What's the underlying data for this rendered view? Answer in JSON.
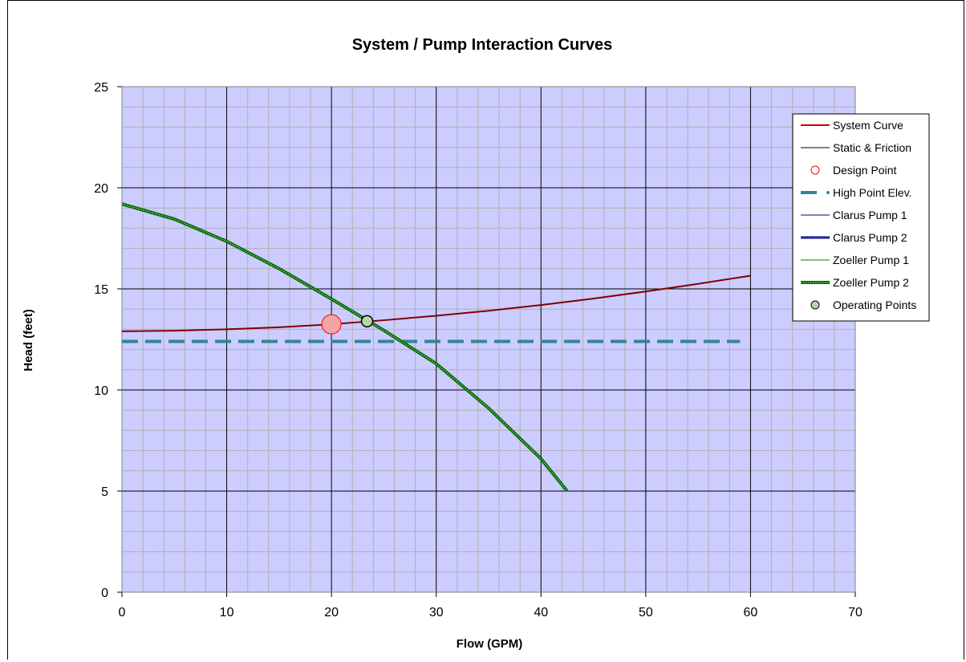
{
  "chart_data": {
    "type": "line",
    "title": "System / Pump Interaction Curves",
    "xlabel": "Flow (GPM)",
    "ylabel": "Head (feet)",
    "xlim": [
      0,
      70
    ],
    "ylim": [
      0,
      25
    ],
    "x_ticks": [
      "0",
      "10",
      "20",
      "30",
      "40",
      "50",
      "60",
      "70"
    ],
    "y_ticks": [
      "0",
      "5",
      "10",
      "15",
      "20",
      "25"
    ],
    "grid": true,
    "plot_background": "#ccccff",
    "legend_position": "right",
    "series": [
      {
        "name": "System Curve",
        "color": "#800000",
        "x": [
          0,
          5,
          10,
          15,
          20,
          25,
          30,
          35,
          40,
          45,
          50,
          55,
          60
        ],
        "y": [
          12.9,
          12.93,
          13.0,
          13.1,
          13.25,
          13.45,
          13.67,
          13.92,
          14.2,
          14.52,
          14.87,
          15.25,
          15.65
        ]
      },
      {
        "name": "Static & Friction",
        "color": "#000000",
        "x": [],
        "y": []
      },
      {
        "name": "Design Point",
        "color": "#ff0000",
        "x": [
          20
        ],
        "y": [
          13.25
        ]
      },
      {
        "name": "High Point Elev.",
        "color": "#31859c",
        "x": [
          0,
          59
        ],
        "y": [
          12.4,
          12.4
        ]
      },
      {
        "name": "Clarus Pump 1",
        "color": "#000080",
        "x": [],
        "y": []
      },
      {
        "name": "Clarus Pump 2",
        "color": "#000080",
        "x": [],
        "y": []
      },
      {
        "name": "Zoeller Pump 1",
        "color": "#008000",
        "x": [],
        "y": []
      },
      {
        "name": "Zoeller Pump 2",
        "color": "#008000",
        "x": [
          0,
          5,
          10,
          15,
          20,
          25,
          30,
          35,
          40,
          42.5
        ],
        "y": [
          19.2,
          18.45,
          17.35,
          16.0,
          14.5,
          12.95,
          11.3,
          9.1,
          6.6,
          5.0
        ]
      },
      {
        "name": "Operating Points",
        "color": "#000000",
        "x": [
          23.4
        ],
        "y": [
          13.4
        ]
      }
    ]
  }
}
